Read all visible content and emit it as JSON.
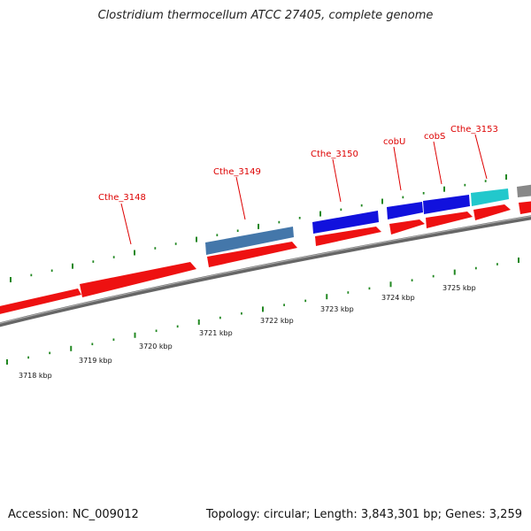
{
  "title": "Clostridium thermocellum ATCC 27405, complete genome",
  "footer": {
    "accession": "Accession: NC_009012",
    "summary": "Topology: circular; Length: 3,843,301 bp; Genes: 3,259"
  },
  "colors": {
    "forward_cds": "#ee1111",
    "reverse_blue": "#1111dd",
    "reverse_steel": "#4477aa",
    "reverse_cyan": "#22c8cc",
    "other": "#888888",
    "backbone": "#777777",
    "tick": "#228822",
    "label": "#dd0000"
  },
  "gene_labels": [
    {
      "name": "Cthe_3148"
    },
    {
      "name": "Cthe_3149"
    },
    {
      "name": "Cthe_3150"
    },
    {
      "name": "cobU"
    },
    {
      "name": "cobS"
    },
    {
      "name": "Cthe_3153"
    }
  ],
  "kbp_ticks": [
    "3718 kbp",
    "3719 kbp",
    "3720 kbp",
    "3721 kbp",
    "3722 kbp",
    "3723 kbp",
    "3724 kbp",
    "3725 kbp"
  ]
}
